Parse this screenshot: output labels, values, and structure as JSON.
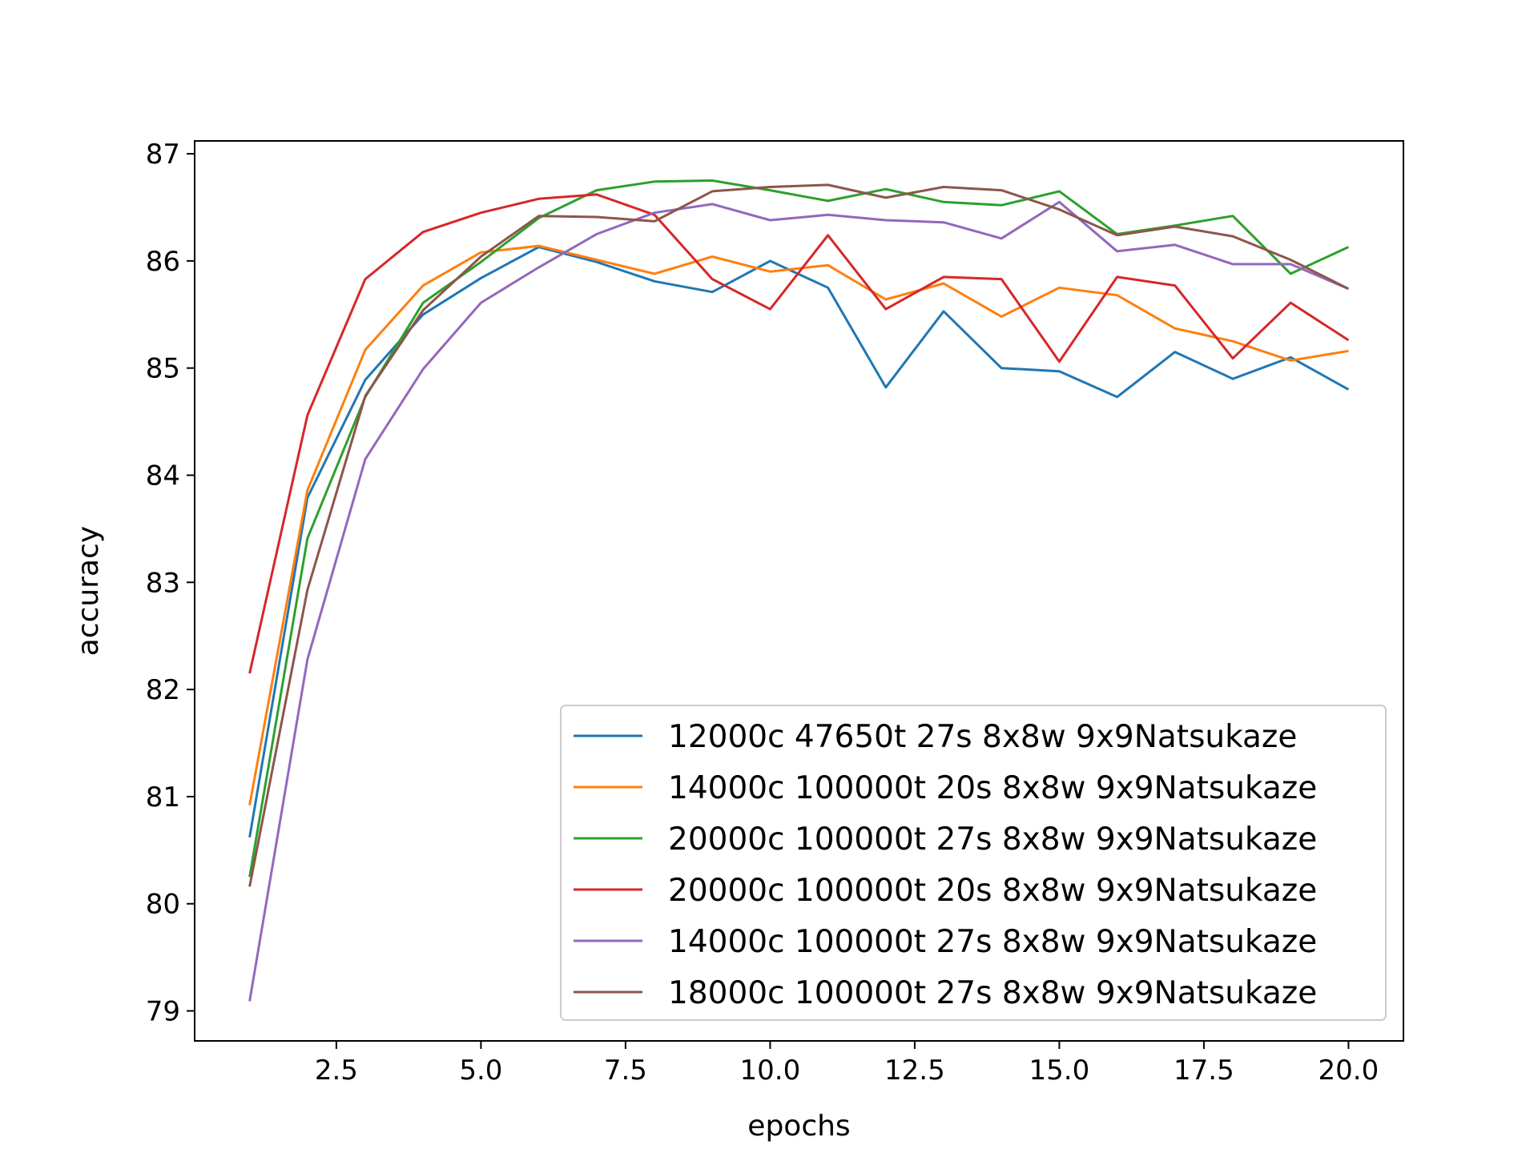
{
  "chart_data": {
    "type": "line",
    "title": "",
    "xlabel": "epochs",
    "ylabel": "accuracy",
    "xlim": [
      0.05,
      20.95
    ],
    "ylim": [
      78.72,
      87.12
    ],
    "xticks": [
      "2.5",
      "5.0",
      "7.5",
      "10.0",
      "12.5",
      "15.0",
      "17.5",
      "20.0"
    ],
    "xtick_values": [
      2.5,
      5.0,
      7.5,
      10.0,
      12.5,
      15.0,
      17.5,
      20.0
    ],
    "yticks": [
      "79",
      "80",
      "81",
      "82",
      "83",
      "84",
      "85",
      "86",
      "87"
    ],
    "ytick_values": [
      79,
      80,
      81,
      82,
      83,
      84,
      85,
      86,
      87
    ],
    "grid": false,
    "legend_position": "lower-right",
    "x": [
      1,
      2,
      3,
      4,
      5,
      6,
      7,
      8,
      9,
      10,
      11,
      12,
      13,
      14,
      15,
      16,
      17,
      18,
      19,
      20
    ],
    "series": [
      {
        "name": "12000c 47650t 27s 8x8w 9x9Natsukaze",
        "color": "#1f77b4",
        "values": [
          80.62,
          83.79,
          84.89,
          85.5,
          85.84,
          86.13,
          85.99,
          85.81,
          85.71,
          86.0,
          85.75,
          84.82,
          85.53,
          85.0,
          84.97,
          84.73,
          85.15,
          84.9,
          85.1,
          84.8
        ]
      },
      {
        "name": "14000c 100000t 20s 8x8w 9x9Natsukaze",
        "color": "#ff7f0e",
        "values": [
          80.92,
          83.86,
          85.17,
          85.77,
          86.08,
          86.14,
          86.01,
          85.88,
          86.04,
          85.9,
          85.96,
          85.64,
          85.79,
          85.48,
          85.75,
          85.68,
          85.37,
          85.25,
          85.07,
          85.16
        ]
      },
      {
        "name": "20000c 100000t 27s 8x8w 9x9Natsukaze",
        "color": "#2ca02c",
        "values": [
          80.25,
          83.41,
          84.73,
          85.61,
          85.99,
          86.4,
          86.66,
          86.74,
          86.75,
          86.66,
          86.56,
          86.67,
          86.55,
          86.52,
          86.65,
          86.25,
          86.33,
          86.42,
          85.88,
          86.13
        ]
      },
      {
        "name": "20000c 100000t 20s 8x8w 9x9Natsukaze",
        "color": "#d62728",
        "values": [
          82.15,
          84.56,
          85.83,
          86.27,
          86.45,
          86.58,
          86.62,
          86.43,
          85.83,
          85.55,
          86.24,
          85.55,
          85.85,
          85.83,
          85.06,
          85.85,
          85.77,
          85.09,
          85.61,
          85.26
        ]
      },
      {
        "name": "14000c 100000t 27s 8x8w 9x9Natsukaze",
        "color": "#9467bd",
        "values": [
          79.09,
          82.28,
          84.15,
          84.99,
          85.61,
          85.94,
          86.25,
          86.45,
          86.53,
          86.38,
          86.43,
          86.38,
          86.36,
          86.21,
          86.55,
          86.09,
          86.15,
          85.97,
          85.97,
          85.74
        ]
      },
      {
        "name": "18000c 100000t 27s 8x8w 9x9Natsukaze",
        "color": "#8c564b",
        "values": [
          80.16,
          82.93,
          84.74,
          85.54,
          86.04,
          86.42,
          86.41,
          86.37,
          86.65,
          86.69,
          86.71,
          86.59,
          86.69,
          86.66,
          86.48,
          86.24,
          86.32,
          86.23,
          86.01,
          85.74
        ]
      }
    ]
  }
}
